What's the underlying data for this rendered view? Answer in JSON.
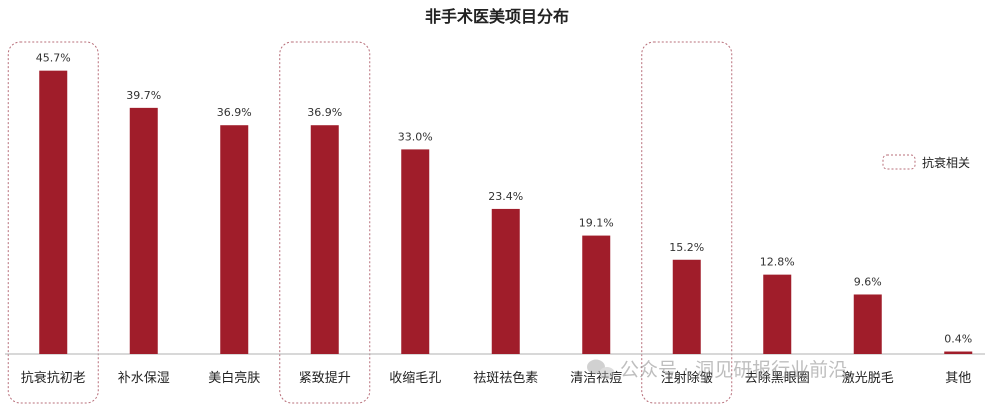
{
  "chart_data": {
    "type": "bar",
    "title": "非手术医美项目分布",
    "categories": [
      "抗衰抗初老",
      "补水保湿",
      "美白亮肤",
      "紧致提升",
      "收缩毛孔",
      "祛斑祛色素",
      "清洁祛痘",
      "注射除皱",
      "去除黑眼圈",
      "激光脱毛",
      "其他"
    ],
    "values": [
      45.7,
      39.7,
      36.9,
      36.9,
      33.0,
      23.4,
      19.1,
      15.2,
      12.8,
      9.6,
      0.4
    ],
    "value_labels": [
      "45.7%",
      "39.7%",
      "36.9%",
      "36.9%",
      "33.0%",
      "23.4%",
      "19.1%",
      "15.2%",
      "12.8%",
      "9.6%",
      "0.4%"
    ],
    "highlighted": [
      "抗衰抗初老",
      "紧致提升",
      "注射除皱"
    ],
    "legend": {
      "label": "抗衰相关",
      "position": "right"
    },
    "ylim": [
      0,
      50
    ],
    "grid": false,
    "colors": {
      "bar": "#a01d2a",
      "highlight_border": "#b86f7a",
      "axis": "#b0b0b0"
    }
  },
  "watermark": {
    "icon": "wechat-icon",
    "text": "公众号 · 洞见研报行业前沿"
  }
}
